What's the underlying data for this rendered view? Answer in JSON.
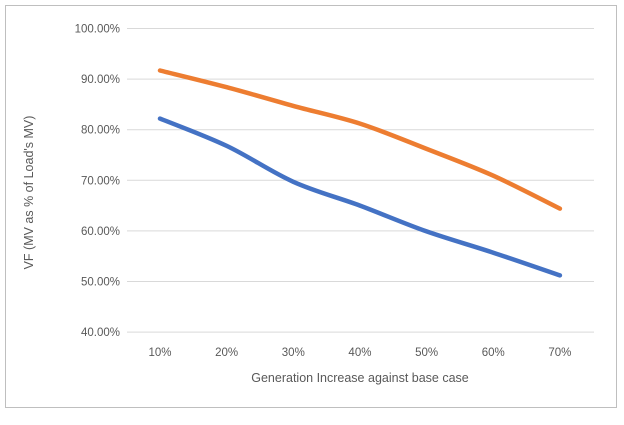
{
  "chart_data": {
    "type": "line",
    "title": "",
    "xlabel": "Generation Increase against base case",
    "ylabel": "VF (MV as % of Load's MV)",
    "categories": [
      "10%",
      "20%",
      "30%",
      "40%",
      "50%",
      "60%",
      "70%"
    ],
    "yticks": [
      {
        "label": "100.00%",
        "value": 100
      },
      {
        "label": "90.00%",
        "value": 90
      },
      {
        "label": "80.00%",
        "value": 80
      },
      {
        "label": "70.00%",
        "value": 70
      },
      {
        "label": "60.00%",
        "value": 60
      },
      {
        "label": "50.00%",
        "value": 50
      },
      {
        "label": "40.00%",
        "value": 40
      }
    ],
    "ylim": [
      40,
      100
    ],
    "grid": true,
    "legend": "none",
    "smoothed": true,
    "series": [
      {
        "id": "blue-series",
        "color": "#4472C4",
        "values": [
          82.2,
          76.8,
          69.7,
          65.0,
          59.9,
          55.7,
          51.2
        ]
      },
      {
        "id": "orange-series",
        "color": "#ED7D31",
        "values": [
          91.7,
          88.4,
          84.7,
          81.2,
          76.2,
          70.9,
          64.4
        ]
      }
    ],
    "colors": {
      "gridline": "#D9D9D9",
      "axis_line": "#D9D9D9",
      "tick_label": "#595959",
      "axis_title": "#595959",
      "border": "#BFBFBF",
      "background": "#FFFFFF",
      "series_blue": "#4472C4",
      "series_orange": "#ED7D31"
    }
  }
}
